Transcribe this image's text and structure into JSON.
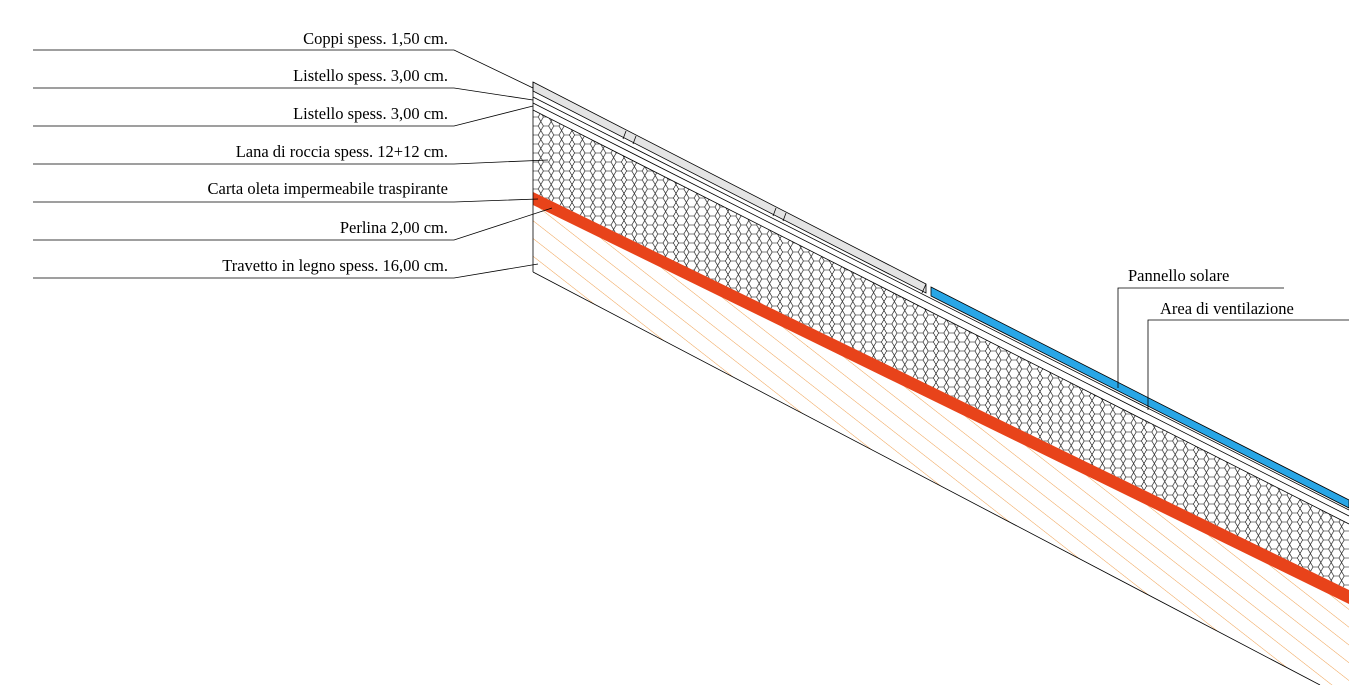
{
  "labels": {
    "coppi": "Coppi spess. 1,50 cm.",
    "listello1": "Listello spess. 3,00 cm.",
    "listello2": "Listello spess. 3,00 cm.",
    "lana": "Lana di roccia spess. 12+12 cm.",
    "carta": "Carta oleta impermeabile traspirante",
    "perlina": "Perlina 2,00 cm.",
    "travetto": "Travetto in legno spess. 16,00 cm.",
    "pannello": "Pannello solare",
    "ventilazione": "Area di ventilazione"
  },
  "colors": {
    "membrane": "#e8431a",
    "wood_hatch": "#f0a050",
    "solar_panel": "#29a6e6",
    "lines": "#000000"
  }
}
